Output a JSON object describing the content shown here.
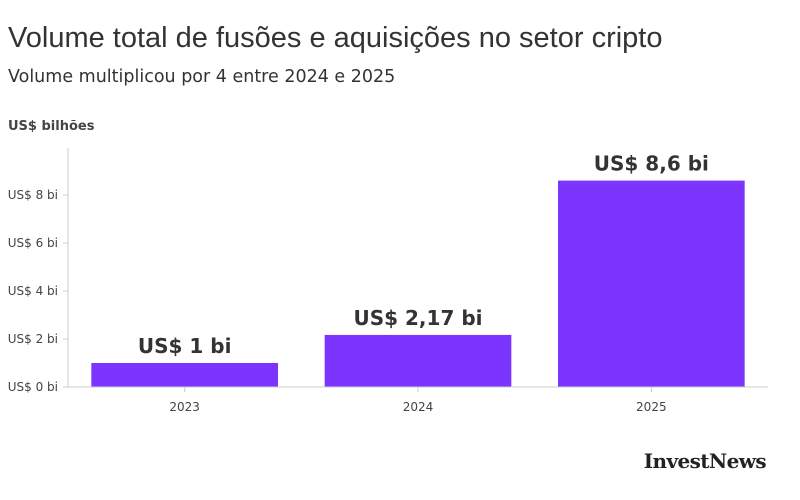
{
  "header": {
    "title": "Volume total de fusões e aquisições no setor cripto",
    "subtitle": "Volume multiplicou por 4 entre 2024 e 2025"
  },
  "brand": {
    "logo_text": "InvestNews"
  },
  "colors": {
    "bar": "#7b35ff",
    "axis": "#cccccc",
    "text": "#333333"
  },
  "chart_data": {
    "type": "bar",
    "title": "Volume total de fusões e aquisições no setor cripto",
    "subtitle": "Volume multiplicou por 4 entre 2024 e 2025",
    "ylabel": "US$ bilhões",
    "xlabel": "",
    "categories": [
      "2023",
      "2024",
      "2025"
    ],
    "values": [
      1,
      2.17,
      8.6
    ],
    "data_labels": [
      "US$ 1 bi",
      "US$ 2,17 bi",
      "US$ 8,6 bi"
    ],
    "ylim": [
      0,
      10
    ],
    "yticks": [
      0,
      2,
      4,
      6,
      8
    ],
    "ytick_labels": [
      "US$ 0 bi",
      "US$ 2 bi",
      "US$ 4 bi",
      "US$ 6 bi",
      "US$ 8 bi"
    ],
    "grid": false,
    "legend": "none"
  }
}
